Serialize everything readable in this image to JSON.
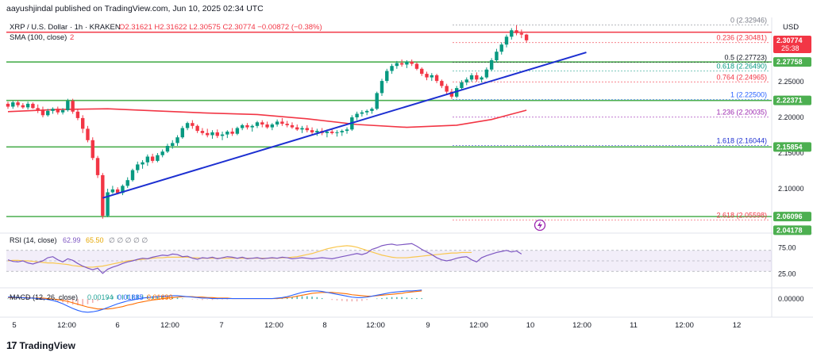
{
  "publish_text": "aayushjindal published on TradingView.com, Jun 10, 2025 02:34 UTC",
  "brand": {
    "logo_glyph": "17",
    "name": "TradingView"
  },
  "colors": {
    "up": "#089981",
    "down": "#f23645",
    "sma": "#f23645",
    "trend": "#1c2fd1",
    "support": "#4caf50",
    "resistance": "#f23645",
    "fib": "#787b86",
    "rsi": "#7e57c2",
    "rsi_ma": "#f9c74f",
    "macd": "#2962ff",
    "signal": "#ff6d00"
  },
  "chart_data": {
    "type": "candlestick",
    "title": "XRP / U.S. Dollar · 1h · KRAKEN",
    "ohlc_header": {
      "O": "O2.31621",
      "H": "H2.31622",
      "L": "L2.30575",
      "C": "C2.30774",
      "chg": "−0.00872 (−0.38%)"
    },
    "currency": "USD",
    "indicator_label": {
      "name": "SMA (100, close)",
      "value": "2"
    },
    "ylim": [
      2.04,
      2.34
    ],
    "y_ticks": [
      2.1,
      2.15,
      2.2,
      2.25
    ],
    "y_tick_labels": [
      "2.10000",
      "2.15000",
      "2.20000",
      "2.25000"
    ],
    "x_tick_labels": [
      "5",
      "12:00",
      "6",
      "12:00",
      "7",
      "12:00",
      "8",
      "12:00",
      "9",
      "12:00",
      "10",
      "12:00",
      "11",
      "12:00",
      "12"
    ],
    "price_labels": [
      {
        "value": 2.30774,
        "text": "2.30774",
        "sub": "25:38",
        "kind": "current"
      },
      {
        "value": 2.27758,
        "text": "2.27758",
        "kind": "support"
      },
      {
        "value": 2.22371,
        "text": "2.22371",
        "kind": "support"
      },
      {
        "value": 2.15854,
        "text": "2.15854",
        "kind": "support"
      },
      {
        "value": 2.06096,
        "text": "2.06096",
        "kind": "support"
      },
      {
        "value": 2.04178,
        "text": "2.04178",
        "kind": "low"
      }
    ],
    "horizontal_lines": [
      {
        "value": 2.3193,
        "kind": "resistance"
      },
      {
        "value": 2.27758,
        "kind": "support"
      },
      {
        "value": 2.22371,
        "kind": "support"
      },
      {
        "value": 2.15854,
        "kind": "support"
      },
      {
        "value": 2.06096,
        "kind": "support"
      }
    ],
    "fib_levels": [
      {
        "ratio": "0",
        "value": 2.32946,
        "text": "0 (2.32946)",
        "color": "#787b86"
      },
      {
        "ratio": "0.236",
        "value": 2.30481,
        "text": "0.236 (2.30481)",
        "color": "#f23645"
      },
      {
        "ratio": "0.5",
        "value": 2.27723,
        "text": "0.5 (2.27723)",
        "color": "#131722"
      },
      {
        "ratio": "0.618",
        "value": 2.2649,
        "text": "0.618 (2.26490)",
        "color": "#089981"
      },
      {
        "ratio": "0.764",
        "value": 2.24965,
        "text": "0.764 (2.24965)",
        "color": "#f23645"
      },
      {
        "ratio": "1",
        "value": 2.225,
        "text": "1 (2.22500)",
        "color": "#2962ff"
      },
      {
        "ratio": "1.236",
        "value": 2.20035,
        "text": "1.236 (2.20035)",
        "color": "#9c27b0"
      },
      {
        "ratio": "1.618",
        "value": 2.16044,
        "text": "1.618 (2.16044)",
        "color": "#1c2fd1"
      },
      {
        "ratio": "2.618",
        "value": 2.05598,
        "text": "2.618 (2.05598)",
        "color": "#f23645"
      }
    ],
    "candles": [
      [
        2.219,
        2.222,
        2.212,
        2.215
      ],
      [
        2.215,
        2.223,
        2.212,
        2.221
      ],
      [
        2.221,
        2.224,
        2.214,
        2.217
      ],
      [
        2.217,
        2.22,
        2.212,
        2.214
      ],
      [
        2.214,
        2.222,
        2.211,
        2.219
      ],
      [
        2.219,
        2.221,
        2.212,
        2.213
      ],
      [
        2.213,
        2.218,
        2.206,
        2.21
      ],
      [
        2.21,
        2.215,
        2.2,
        2.203
      ],
      [
        2.203,
        2.212,
        2.201,
        2.209
      ],
      [
        2.209,
        2.214,
        2.205,
        2.212
      ],
      [
        2.212,
        2.215,
        2.204,
        2.207
      ],
      [
        2.207,
        2.213,
        2.204,
        2.21
      ],
      [
        2.21,
        2.226,
        2.208,
        2.223
      ],
      [
        2.223,
        2.226,
        2.205,
        2.208
      ],
      [
        2.208,
        2.212,
        2.196,
        2.199
      ],
      [
        2.199,
        2.203,
        2.178,
        2.184
      ],
      [
        2.184,
        2.188,
        2.165,
        2.168
      ],
      [
        2.168,
        2.172,
        2.14,
        2.143
      ],
      [
        2.143,
        2.146,
        2.115,
        2.119
      ],
      [
        2.119,
        2.122,
        2.058,
        2.062
      ],
      [
        2.062,
        2.1,
        2.06,
        2.095
      ],
      [
        2.095,
        2.104,
        2.093,
        2.099
      ],
      [
        2.099,
        2.102,
        2.092,
        2.094
      ],
      [
        2.094,
        2.106,
        2.091,
        2.104
      ],
      [
        2.104,
        2.116,
        2.101,
        2.112
      ],
      [
        2.112,
        2.128,
        2.11,
        2.126
      ],
      [
        2.126,
        2.138,
        2.122,
        2.134
      ],
      [
        2.134,
        2.14,
        2.128,
        2.137
      ],
      [
        2.137,
        2.148,
        2.132,
        2.145
      ],
      [
        2.145,
        2.149,
        2.136,
        2.139
      ],
      [
        2.139,
        2.15,
        2.137,
        2.147
      ],
      [
        2.147,
        2.155,
        2.144,
        2.152
      ],
      [
        2.152,
        2.163,
        2.15,
        2.16
      ],
      [
        2.16,
        2.168,
        2.156,
        2.164
      ],
      [
        2.164,
        2.175,
        2.16,
        2.172
      ],
      [
        2.172,
        2.188,
        2.17,
        2.185
      ],
      [
        2.185,
        2.194,
        2.182,
        2.192
      ],
      [
        2.192,
        2.196,
        2.184,
        2.188
      ],
      [
        2.188,
        2.19,
        2.178,
        2.181
      ],
      [
        2.181,
        2.185,
        2.175,
        2.178
      ],
      [
        2.178,
        2.184,
        2.172,
        2.175
      ],
      [
        2.175,
        2.182,
        2.17,
        2.179
      ],
      [
        2.179,
        2.183,
        2.171,
        2.174
      ],
      [
        2.174,
        2.18,
        2.168,
        2.176
      ],
      [
        2.176,
        2.182,
        2.171,
        2.18
      ],
      [
        2.18,
        2.185,
        2.174,
        2.177
      ],
      [
        2.177,
        2.187,
        2.175,
        2.185
      ],
      [
        2.185,
        2.191,
        2.182,
        2.189
      ],
      [
        2.189,
        2.192,
        2.183,
        2.186
      ],
      [
        2.186,
        2.19,
        2.18,
        2.188
      ],
      [
        2.188,
        2.195,
        2.185,
        2.193
      ],
      [
        2.193,
        2.196,
        2.186,
        2.19
      ],
      [
        2.19,
        2.194,
        2.184,
        2.186
      ],
      [
        2.186,
        2.192,
        2.182,
        2.19
      ],
      [
        2.19,
        2.197,
        2.187,
        2.194
      ],
      [
        2.194,
        2.199,
        2.188,
        2.191
      ],
      [
        2.191,
        2.195,
        2.186,
        2.189
      ],
      [
        2.189,
        2.193,
        2.184,
        2.186
      ],
      [
        2.186,
        2.19,
        2.181,
        2.183
      ],
      [
        2.183,
        2.188,
        2.178,
        2.185
      ],
      [
        2.185,
        2.189,
        2.179,
        2.182
      ],
      [
        2.182,
        2.186,
        2.176,
        2.179
      ],
      [
        2.179,
        2.184,
        2.174,
        2.181
      ],
      [
        2.181,
        2.185,
        2.175,
        2.178
      ],
      [
        2.178,
        2.183,
        2.172,
        2.18
      ],
      [
        2.18,
        2.184,
        2.176,
        2.178
      ],
      [
        2.178,
        2.182,
        2.173,
        2.179
      ],
      [
        2.179,
        2.183,
        2.174,
        2.181
      ],
      [
        2.181,
        2.186,
        2.177,
        2.183
      ],
      [
        2.183,
        2.203,
        2.181,
        2.2
      ],
      [
        2.2,
        2.208,
        2.196,
        2.205
      ],
      [
        2.205,
        2.21,
        2.201,
        2.207
      ],
      [
        2.207,
        2.211,
        2.203,
        2.209
      ],
      [
        2.209,
        2.214,
        2.205,
        2.212
      ],
      [
        2.212,
        2.236,
        2.21,
        2.234
      ],
      [
        2.234,
        2.254,
        2.23,
        2.251
      ],
      [
        2.251,
        2.268,
        2.248,
        2.265
      ],
      [
        2.265,
        2.275,
        2.261,
        2.272
      ],
      [
        2.272,
        2.279,
        2.268,
        2.276
      ],
      [
        2.276,
        2.281,
        2.271,
        2.274
      ],
      [
        2.274,
        2.28,
        2.269,
        2.278
      ],
      [
        2.278,
        2.281,
        2.272,
        2.275
      ],
      [
        2.275,
        2.277,
        2.266,
        2.268
      ],
      [
        2.268,
        2.27,
        2.258,
        2.261
      ],
      [
        2.261,
        2.264,
        2.252,
        2.256
      ],
      [
        2.256,
        2.262,
        2.251,
        2.259
      ],
      [
        2.259,
        2.261,
        2.248,
        2.251
      ],
      [
        2.251,
        2.253,
        2.241,
        2.244
      ],
      [
        2.244,
        2.247,
        2.232,
        2.236
      ],
      [
        2.236,
        2.24,
        2.226,
        2.229
      ],
      [
        2.229,
        2.244,
        2.227,
        2.241
      ],
      [
        2.241,
        2.252,
        2.238,
        2.249
      ],
      [
        2.249,
        2.256,
        2.245,
        2.253
      ],
      [
        2.253,
        2.262,
        2.25,
        2.259
      ],
      [
        2.259,
        2.263,
        2.25,
        2.253
      ],
      [
        2.253,
        2.258,
        2.249,
        2.256
      ],
      [
        2.256,
        2.27,
        2.254,
        2.267
      ],
      [
        2.267,
        2.283,
        2.265,
        2.28
      ],
      [
        2.28,
        2.296,
        2.277,
        2.292
      ],
      [
        2.292,
        2.305,
        2.288,
        2.302
      ],
      [
        2.302,
        2.316,
        2.298,
        2.313
      ],
      [
        2.313,
        2.325,
        2.309,
        2.322
      ],
      [
        2.322,
        2.329,
        2.315,
        2.318
      ],
      [
        2.318,
        2.323,
        2.311,
        2.316
      ],
      [
        2.316,
        2.317,
        2.305,
        2.308
      ]
    ],
    "sma100": [
      [
        0,
        2.208
      ],
      [
        10,
        2.211
      ],
      [
        20,
        2.212
      ],
      [
        30,
        2.209
      ],
      [
        40,
        2.206
      ],
      [
        50,
        2.204
      ],
      [
        60,
        2.198
      ],
      [
        70,
        2.19
      ],
      [
        80,
        2.186
      ],
      [
        90,
        2.189
      ],
      [
        97,
        2.197
      ],
      [
        104,
        2.21
      ]
    ],
    "trendline": {
      "from": [
        19,
        2.087
      ],
      "to": [
        116,
        2.291
      ]
    },
    "rsi": {
      "label": "RSI (14, close)",
      "value": "62.99",
      "ma_value": "65.50",
      "extra": "∅ ∅ ∅ ∅ ∅",
      "ylim": [
        0,
        100
      ],
      "upper": 70,
      "lower": 30,
      "tick_values": [
        25,
        75
      ],
      "tick_labels": [
        "25.00",
        "75.00"
      ],
      "values": [
        52,
        49,
        48,
        50,
        46,
        44,
        47,
        50,
        56,
        58,
        52,
        48,
        54,
        51,
        45,
        40,
        36,
        33,
        36,
        26,
        34,
        38,
        41,
        45,
        48,
        50,
        53,
        55,
        54,
        57,
        59,
        61,
        60,
        63,
        62,
        58,
        59,
        55,
        53,
        56,
        55,
        57,
        54,
        56,
        58,
        57,
        55,
        57,
        54,
        55,
        56,
        54,
        55,
        56,
        55,
        57,
        56,
        54,
        55,
        56,
        55,
        54,
        55,
        56,
        55,
        54,
        56,
        58,
        60,
        62,
        64,
        62,
        65,
        72,
        75,
        79,
        81,
        82,
        80,
        81,
        82,
        83,
        78,
        72,
        67,
        62,
        56,
        52,
        50,
        52,
        55,
        57,
        58,
        52,
        48,
        56,
        60,
        63,
        66,
        68,
        70,
        67,
        69,
        63
      ],
      "ma_values": [
        50,
        51,
        51,
        50,
        50,
        49,
        48,
        47,
        46,
        46,
        45,
        44,
        43,
        41,
        40,
        39,
        38,
        38,
        39,
        40,
        42,
        44,
        46,
        48,
        50,
        51,
        52,
        53,
        54,
        55,
        56,
        56,
        57,
        57,
        57,
        57,
        57,
        56,
        56,
        55,
        55,
        55,
        55,
        55,
        55,
        55,
        55,
        55,
        55,
        55,
        55,
        55,
        55,
        55,
        55,
        56,
        56,
        57,
        58,
        60,
        62,
        64,
        67,
        70,
        73,
        75,
        77,
        78,
        79,
        78,
        76,
        73,
        70,
        67,
        64,
        61,
        59,
        57,
        56,
        56,
        56,
        57,
        58,
        59,
        60,
        61,
        62,
        63,
        64,
        65,
        65,
        66,
        66,
        66
      ],
      "highlight_range": [
        88,
        101
      ]
    },
    "macd": {
      "label": "MACD (12, 26, close)",
      "hist_value": "0.00194",
      "macd_value": "0.01885",
      "signal_value": "0.01690",
      "ylim": [
        -0.035,
        0.022
      ],
      "tick_values": [
        0
      ],
      "tick_labels": [
        "0.00000"
      ],
      "macd_values": [
        0.004,
        0.004,
        0.003,
        0.003,
        0.002,
        0.002,
        0.001,
        0.0,
        -0.001,
        -0.003,
        -0.006,
        -0.01,
        -0.015,
        -0.02,
        -0.024,
        -0.027,
        -0.028,
        -0.027,
        -0.025,
        -0.022,
        -0.018,
        -0.014,
        -0.01,
        -0.007,
        -0.004,
        -0.002,
        0.0,
        0.002,
        0.003,
        0.004,
        0.005,
        0.006,
        0.006,
        0.007,
        0.007,
        0.006,
        0.005,
        0.004,
        0.003,
        0.002,
        0.002,
        0.001,
        0.001,
        0.001,
        0.001,
        0.001,
        0.001,
        0.001,
        0.001,
        0.001,
        0.001,
        0.001,
        0.001,
        0.001,
        0.002,
        0.003,
        0.005,
        0.008,
        0.011,
        0.014,
        0.016,
        0.017,
        0.017,
        0.016,
        0.014,
        0.012,
        0.01,
        0.008,
        0.006,
        0.004,
        0.003,
        0.003,
        0.004,
        0.006,
        0.008,
        0.01,
        0.012,
        0.014,
        0.015,
        0.016,
        0.017,
        0.017,
        0.018,
        0.019
      ],
      "signal_values": [
        0.003,
        0.003,
        0.003,
        0.003,
        0.003,
        0.002,
        0.002,
        0.002,
        0.001,
        0.0,
        -0.001,
        -0.003,
        -0.005,
        -0.008,
        -0.011,
        -0.014,
        -0.017,
        -0.019,
        -0.021,
        -0.021,
        -0.021,
        -0.02,
        -0.018,
        -0.016,
        -0.013,
        -0.011,
        -0.008,
        -0.006,
        -0.004,
        -0.002,
        -0.001,
        0.001,
        0.002,
        0.003,
        0.004,
        0.005,
        0.005,
        0.005,
        0.004,
        0.004,
        0.003,
        0.003,
        0.002,
        0.002,
        0.002,
        0.001,
        0.001,
        0.001,
        0.001,
        0.001,
        0.001,
        0.001,
        0.001,
        0.001,
        0.001,
        0.002,
        0.003,
        0.004,
        0.006,
        0.008,
        0.01,
        0.012,
        0.013,
        0.014,
        0.014,
        0.014,
        0.013,
        0.012,
        0.011,
        0.009,
        0.008,
        0.007,
        0.006,
        0.006,
        0.007,
        0.008,
        0.009,
        0.01,
        0.011,
        0.012,
        0.014,
        0.015,
        0.016,
        0.017
      ]
    }
  }
}
